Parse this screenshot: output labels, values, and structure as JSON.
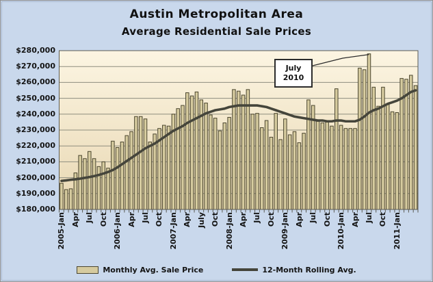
{
  "title": "Austin Metropolitan Area",
  "subtitle": "Average Residential Sale Prices",
  "annotation": {
    "line1": "July",
    "line2": "2010"
  },
  "legend": {
    "bar_label": "Monthly Avg. Sale Price",
    "line_label": "12-Month Rolling Avg."
  },
  "colors": {
    "frame_background": "#c9d8ec",
    "plot_background_top": "#fcf5e2",
    "plot_background_bottom": "#e8d7b2",
    "bar_fill": "#d6cb9f",
    "bar_border": "#4a452e",
    "rolling_line": "#45453b",
    "gridline": "#8d8d7f",
    "plot_border": "#5a5a52",
    "text": "#141414"
  },
  "chart_data": {
    "type": "bar",
    "title": "Austin Metropolitan Area — Average Residential Sale Prices",
    "xlabel": "",
    "ylabel": "",
    "ylim": [
      180000,
      280000
    ],
    "ytick_step": 10000,
    "grid": true,
    "legend_position": "bottom",
    "y_tick_labels": [
      "$280,000",
      "$270,000",
      "$260,000",
      "$250,000",
      "$240,000",
      "$230,000",
      "$220,000",
      "$210,000",
      "$200,000",
      "$190,000",
      "$180,000"
    ],
    "x_tick_labels": [
      "2005-Jan",
      "Apr",
      "Jul",
      "Oct",
      "2006-Jan",
      "Apr",
      "Jul",
      "Oct",
      "2007-Jan",
      "Apr",
      "July",
      "Oct",
      "2008-Jan",
      "Apr",
      "Jul",
      "Oct",
      "2009-Jan",
      "Apr",
      "Jul",
      "Oct",
      "2010-Jan",
      "Apr",
      "Jul",
      "Oct",
      "2011-Jan"
    ],
    "x_tick_every_n_months": 3,
    "categories": [
      "2005-Jan",
      "2005-Feb",
      "2005-Mar",
      "2005-Apr",
      "2005-May",
      "2005-Jun",
      "2005-Jul",
      "2005-Aug",
      "2005-Sep",
      "2005-Oct",
      "2005-Nov",
      "2005-Dec",
      "2006-Jan",
      "2006-Feb",
      "2006-Mar",
      "2006-Apr",
      "2006-May",
      "2006-Jun",
      "2006-Jul",
      "2006-Aug",
      "2006-Sep",
      "2006-Oct",
      "2006-Nov",
      "2006-Dec",
      "2007-Jan",
      "2007-Feb",
      "2007-Mar",
      "2007-Apr",
      "2007-May",
      "2007-Jun",
      "2007-Jul",
      "2007-Aug",
      "2007-Sep",
      "2007-Oct",
      "2007-Nov",
      "2007-Dec",
      "2008-Jan",
      "2008-Feb",
      "2008-Mar",
      "2008-Apr",
      "2008-May",
      "2008-Jun",
      "2008-Jul",
      "2008-Aug",
      "2008-Sep",
      "2008-Oct",
      "2008-Nov",
      "2008-Dec",
      "2009-Jan",
      "2009-Feb",
      "2009-Mar",
      "2009-Apr",
      "2009-May",
      "2009-Jun",
      "2009-Jul",
      "2009-Aug",
      "2009-Sep",
      "2009-Oct",
      "2009-Nov",
      "2009-Dec",
      "2010-Jan",
      "2010-Feb",
      "2010-Mar",
      "2010-Apr",
      "2010-May",
      "2010-Jun",
      "2010-Jul",
      "2010-Aug",
      "2010-Sep",
      "2010-Oct",
      "2010-Nov",
      "2010-Dec",
      "2011-Jan",
      "2011-Feb",
      "2011-Mar",
      "2011-Apr",
      "2011-May"
    ],
    "series": [
      {
        "name": "Monthly Avg. Sale Price",
        "type": "bar",
        "values": [
          196500,
          192500,
          193000,
          203000,
          214000,
          212000,
          216500,
          212000,
          207000,
          210000,
          206000,
          223000,
          219000,
          222500,
          226500,
          229000,
          238500,
          238500,
          237000,
          222500,
          227500,
          231000,
          233000,
          232500,
          240000,
          243500,
          245500,
          253500,
          251500,
          254000,
          249000,
          247000,
          239500,
          237500,
          229500,
          234500,
          238000,
          255500,
          254500,
          252000,
          255500,
          240000,
          240500,
          231500,
          236000,
          225500,
          240500,
          224000,
          237000,
          227000,
          229000,
          222000,
          228000,
          249000,
          245500,
          235500,
          234500,
          235000,
          232500,
          256000,
          233000,
          231000,
          231000,
          231000,
          269000,
          268000,
          278000,
          257000,
          245000,
          257000,
          246000,
          241500,
          241000,
          262500,
          262000,
          264500,
          258000
        ]
      },
      {
        "name": "12-Month Rolling Avg.",
        "type": "line",
        "values": [
          198000,
          198300,
          198700,
          199000,
          199400,
          199900,
          200400,
          201000,
          201700,
          202600,
          203600,
          204800,
          206500,
          208500,
          210500,
          212500,
          214500,
          216500,
          218500,
          220000,
          221500,
          223500,
          225500,
          227500,
          229500,
          231000,
          232500,
          234500,
          236000,
          237500,
          239000,
          240500,
          241500,
          242500,
          243000,
          243500,
          244500,
          245000,
          245500,
          245500,
          245500,
          245500,
          245500,
          245000,
          244500,
          243500,
          242500,
          241500,
          240500,
          239500,
          238500,
          238000,
          237500,
          237000,
          236500,
          236000,
          236000,
          235500,
          235500,
          236000,
          236000,
          235500,
          235500,
          235500,
          236500,
          238500,
          241000,
          242500,
          243500,
          245000,
          246500,
          247500,
          248500,
          250000,
          252000,
          254000,
          255000
        ]
      }
    ],
    "annotation": {
      "text": "July 2010",
      "target_month": "2010-Jul",
      "target_index": 66,
      "target_value": 278000
    }
  }
}
